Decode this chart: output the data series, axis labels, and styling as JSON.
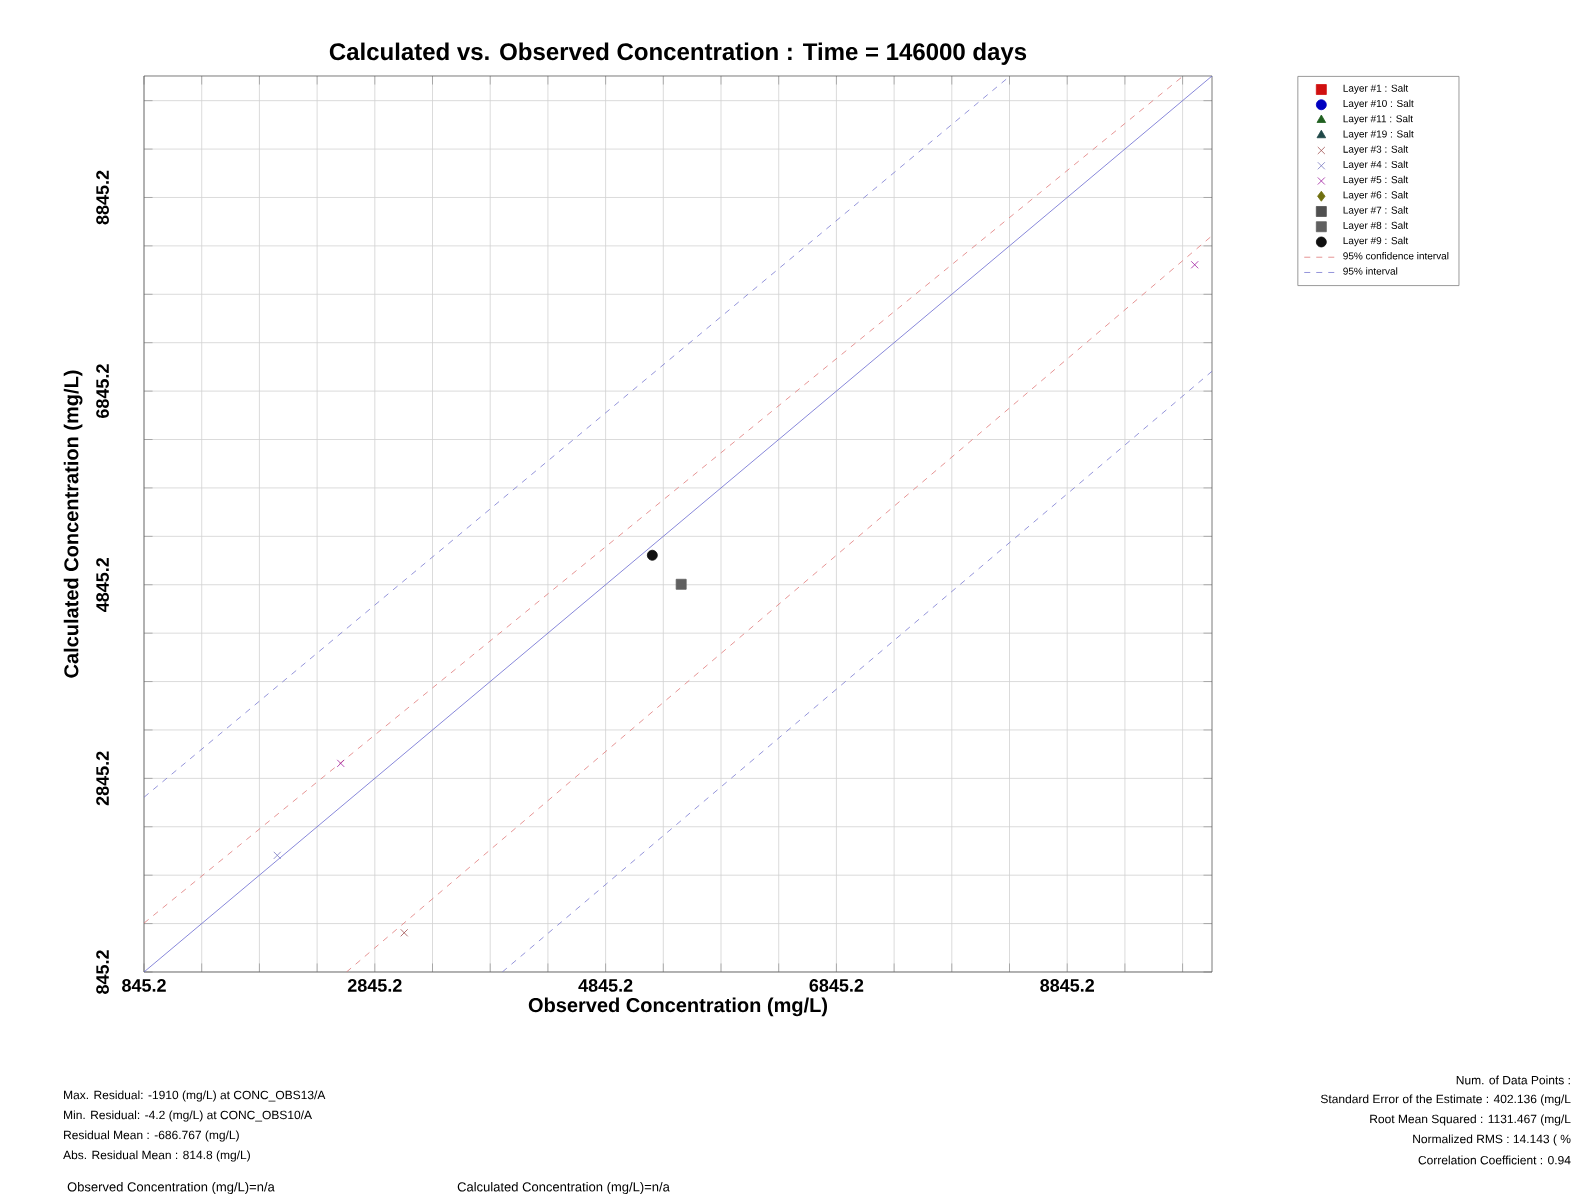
{
  "chart_data": {
    "type": "scatter",
    "title": "Calculated vs. Observed Concentration : Time = 146000 days",
    "xlabel": "Observed Concentration (mg/L)",
    "ylabel": "Calculated Concentration (mg/L)",
    "xlim": [
      845.2,
      10100
    ],
    "ylim": [
      845.2,
      10100
    ],
    "xticks": [
      845.2,
      {
        "value": 1345.2,
        "label": null
      },
      {
        "value": 1845.2,
        "label": null
      },
      {
        "value": 2345.2,
        "label": null
      },
      2845.2,
      {
        "value": 3345.2,
        "label": null
      },
      {
        "value": 3845.2,
        "label": null
      },
      {
        "value": 4345.2,
        "label": null
      },
      4845.2,
      {
        "value": 5345.2,
        "label": null
      },
      {
        "value": 5845.2,
        "label": null
      },
      {
        "value": 6345.2,
        "label": null
      },
      6845.2,
      {
        "value": 7345.2,
        "label": null
      },
      {
        "value": 7845.2,
        "label": null
      },
      {
        "value": 8345.2,
        "label": null
      },
      8845.2,
      {
        "value": 9345.2,
        "label": null
      },
      {
        "value": 9845.2,
        "label": null
      }
    ],
    "yticks": [
      845.2,
      {
        "value": 1345.2,
        "label": null
      },
      {
        "value": 1845.2,
        "label": null
      },
      {
        "value": 2345.2,
        "label": null
      },
      2845.2,
      {
        "value": 3345.2,
        "label": null
      },
      {
        "value": 3845.2,
        "label": null
      },
      {
        "value": 4345.2,
        "label": null
      },
      4845.2,
      {
        "value": 5345.2,
        "label": null
      },
      {
        "value": 5845.2,
        "label": null
      },
      {
        "value": 6345.2,
        "label": null
      },
      6845.2,
      {
        "value": 7345.2,
        "label": null
      },
      {
        "value": 7845.2,
        "label": null
      },
      {
        "value": 8345.2,
        "label": null
      },
      8845.2,
      {
        "value": 9345.2,
        "label": null
      },
      {
        "value": 9845.2,
        "label": null
      }
    ],
    "grid": true,
    "legend": "right",
    "series": [
      {
        "name": "Layer #1 : Salt",
        "color": "#d01010",
        "marker": "square"
      },
      {
        "name": "Layer #10 : Salt",
        "color": "#0000c0",
        "marker": "circle"
      },
      {
        "name": "Layer #11 : Salt",
        "color": "#206020",
        "marker": "triangle"
      },
      {
        "name": "Layer #19 : Salt",
        "color": "#204848",
        "marker": "triangle"
      },
      {
        "name": "Layer #3 : Salt",
        "color": "#a05050",
        "marker": "cross",
        "x": [
          3100
        ],
        "values": [
          1250
        ]
      },
      {
        "name": "Layer #4 : Salt",
        "color": "#7878c0",
        "marker": "cross",
        "x": [
          2000
        ],
        "values": [
          2050
        ]
      },
      {
        "name": "Layer #5 : Salt",
        "color": "#a020a0",
        "marker": "cross",
        "x": [
          2550,
          9950
        ],
        "values": [
          3000,
          8150
        ]
      },
      {
        "name": "Layer #6 : Salt",
        "color": "#707010",
        "marker": "diamond"
      },
      {
        "name": "Layer #7 : Salt",
        "color": "#505050",
        "marker": "square"
      },
      {
        "name": "Layer #8 : Salt",
        "color": "#606060",
        "marker": "square",
        "x": [
          5500
        ],
        "values": [
          4850
        ]
      },
      {
        "name": "Layer #9 : Salt",
        "color": "#101010",
        "marker": "circle",
        "x": [
          5250
        ],
        "values": [
          5150
        ]
      },
      {
        "name": "95% confidence interval",
        "type": "line",
        "line_style": "dashed",
        "color": "#e07878",
        "x": [
          845.2,
          9850,
          null,
          2600,
          10100
        ],
        "values": [
          1350,
          10100,
          null,
          845.2,
          8450
        ]
      },
      {
        "name": "95% interval",
        "type": "line",
        "line_style": "dashed",
        "color": "#7878d0",
        "x": [
          845.2,
          8350,
          null,
          3950,
          10100
        ],
        "values": [
          2650,
          10100,
          null,
          845.2,
          7050
        ]
      },
      {
        "type": "line",
        "line_style": "solid",
        "color": "#6a6ad0",
        "x": [
          845.2,
          10100
        ],
        "values": [
          845.2,
          10100
        ]
      }
    ],
    "annotations": [
      "Max. Residual: -1910 (mg/L) at CONC_OBS13/A",
      "Min. Residual: -4.2 (mg/L) at CONC_OBS10/A",
      "Residual Mean : -686.767 (mg/L)",
      "Abs. Residual Mean : 814.8 (mg/L)",
      "Num. of Data Points :",
      "Standard Error of the Estimate : 402.136 (mg/L",
      "Root Mean Squared : 1131.467 (mg/L",
      "Normalized RMS : 14.143 ( %",
      "Correlation Coefficient : 0.94",
      "Observed Concentration (mg/L)=n/a",
      "Calculated Concentration (mg/L)=n/a"
    ]
  }
}
